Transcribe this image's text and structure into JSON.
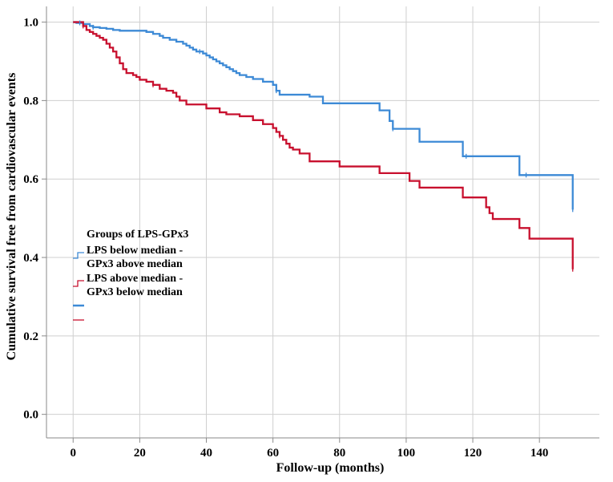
{
  "chart_data": {
    "type": "line",
    "subtype": "kaplan-meier-step",
    "title": "",
    "xlabel": "Follow-up (months)",
    "ylabel": "Cumulative survival free from cardiovascular events",
    "xlim": [
      -8,
      158
    ],
    "ylim": [
      -0.06,
      1.04
    ],
    "xticks": [
      0,
      20,
      40,
      60,
      80,
      100,
      120,
      140
    ],
    "yticks": [
      0.0,
      0.2,
      0.4,
      0.6,
      0.8,
      1.0
    ],
    "ytick_labels": [
      "0.0",
      "0.2",
      "0.4",
      "0.6",
      "0.8",
      "1.0"
    ],
    "grid": true,
    "legend": {
      "title": "Groups of LPS-GPx3",
      "position": "left-middle",
      "entries": [
        {
          "line1": "LPS below median -",
          "line2": "GPx3 above median",
          "color": "#3d8ad6"
        },
        {
          "line1": "LPS above median -",
          "line2": "GPx3 below median",
          "color": "#c8102e"
        }
      ]
    },
    "series": [
      {
        "name": "LPS below median - GPx3 above median",
        "color": "#3d8ad6",
        "x": [
          0,
          1,
          3,
          5,
          6,
          8,
          10,
          12,
          14,
          22,
          24,
          26,
          27,
          29,
          31,
          33,
          34,
          35,
          36,
          37,
          39,
          40,
          41,
          42,
          43,
          44,
          45,
          46,
          47,
          48,
          49,
          50,
          52,
          54,
          57,
          60,
          61,
          62,
          71,
          75,
          92,
          95,
          96,
          104,
          117,
          134,
          150,
          150
        ],
        "y": [
          1.0,
          0.998,
          0.995,
          0.99,
          0.987,
          0.985,
          0.983,
          0.98,
          0.978,
          0.975,
          0.97,
          0.965,
          0.96,
          0.955,
          0.95,
          0.945,
          0.94,
          0.935,
          0.93,
          0.925,
          0.92,
          0.915,
          0.91,
          0.905,
          0.9,
          0.895,
          0.89,
          0.885,
          0.88,
          0.875,
          0.87,
          0.865,
          0.86,
          0.855,
          0.848,
          0.84,
          0.825,
          0.815,
          0.81,
          0.793,
          0.775,
          0.748,
          0.728,
          0.695,
          0.658,
          0.61,
          0.608,
          0.522
        ]
      },
      {
        "name": "LPS above median - GPx3 below median",
        "color": "#c8102e",
        "x": [
          0,
          3,
          4,
          5,
          6,
          7,
          8,
          9,
          10,
          11,
          12,
          13,
          14,
          15,
          16,
          18,
          19,
          20,
          22,
          24,
          26,
          28,
          30,
          31,
          32,
          34,
          40,
          44,
          46,
          50,
          54,
          57,
          60,
          61,
          62,
          63,
          64,
          65,
          66,
          68,
          71,
          80,
          92,
          101,
          104,
          117,
          124,
          125,
          126,
          134,
          137,
          150,
          150
        ],
        "y": [
          1.0,
          0.99,
          0.98,
          0.975,
          0.97,
          0.965,
          0.96,
          0.955,
          0.945,
          0.935,
          0.925,
          0.91,
          0.895,
          0.88,
          0.87,
          0.865,
          0.86,
          0.853,
          0.848,
          0.84,
          0.83,
          0.825,
          0.82,
          0.81,
          0.8,
          0.79,
          0.78,
          0.77,
          0.765,
          0.76,
          0.75,
          0.74,
          0.73,
          0.72,
          0.71,
          0.7,
          0.69,
          0.68,
          0.675,
          0.665,
          0.645,
          0.632,
          0.615,
          0.595,
          0.578,
          0.553,
          0.528,
          0.513,
          0.498,
          0.475,
          0.448,
          0.43,
          0.37
        ]
      }
    ],
    "censor_marks": [
      {
        "series": 0,
        "x": [
          2,
          6,
          38,
          61,
          96,
          118,
          136,
          150
        ]
      },
      {
        "series": 1,
        "x": [
          3,
          24,
          62,
          150
        ]
      }
    ]
  }
}
